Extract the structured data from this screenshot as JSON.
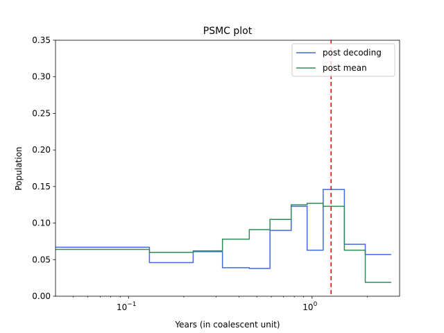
{
  "chart_data": {
    "type": "line",
    "step": "post",
    "title": "PSMC plot",
    "xlabel": "Years (in coalescent unit)",
    "ylabel": "Population",
    "xscale": "log",
    "xlim": [
      0.04,
      3.0
    ],
    "ylim": [
      0,
      0.35
    ],
    "x_ticks": [
      {
        "value": 0.1,
        "base": "10",
        "exp": "−1"
      },
      {
        "value": 1.0,
        "base": "10",
        "exp": "0"
      }
    ],
    "y_ticks": [
      "0.00",
      "0.05",
      "0.10",
      "0.15",
      "0.20",
      "0.25",
      "0.30",
      "0.35"
    ],
    "legend_position": "top-right",
    "grid": false,
    "series": [
      {
        "name": "post decoding",
        "color": "#4169e1",
        "x": [
          0.04,
          0.13,
          0.225,
          0.325,
          0.455,
          0.59,
          0.77,
          0.94,
          1.15,
          1.5,
          1.95,
          2.7
        ],
        "y": [
          0.067,
          0.046,
          0.061,
          0.039,
          0.038,
          0.09,
          0.123,
          0.063,
          0.146,
          0.071,
          0.057,
          0.057
        ]
      },
      {
        "name": "post mean",
        "color": "#2e8b57",
        "x": [
          0.04,
          0.13,
          0.225,
          0.325,
          0.455,
          0.59,
          0.77,
          0.94,
          1.15,
          1.5,
          1.95,
          2.7
        ],
        "y": [
          0.064,
          0.06,
          0.062,
          0.078,
          0.091,
          0.105,
          0.125,
          0.127,
          0.123,
          0.063,
          0.019,
          0.019
        ]
      }
    ],
    "reference_line": {
      "x": 1.27,
      "color": "#ff0000",
      "style": "dashed"
    }
  }
}
